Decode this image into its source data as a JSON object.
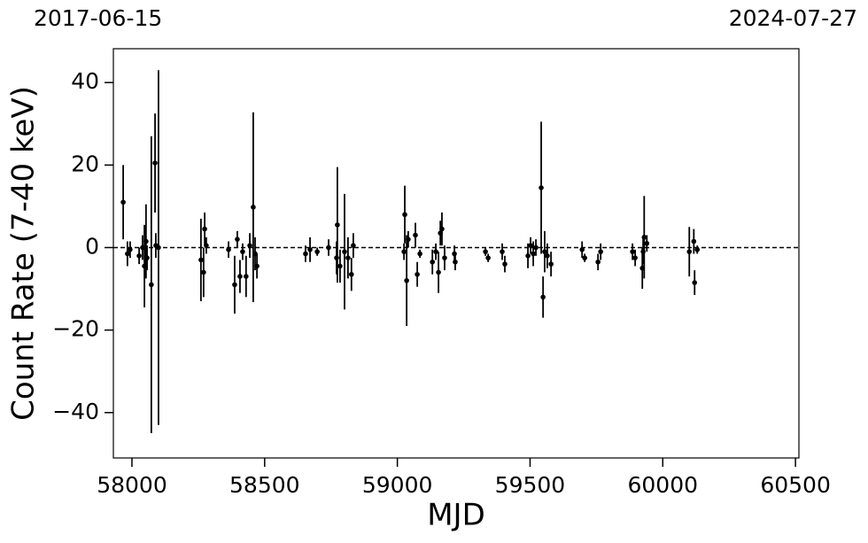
{
  "chart_data": {
    "type": "scatter",
    "annotations": [
      "2017-06-15",
      "2024-07-27"
    ],
    "x_label": "MJD",
    "y_label": "Count Rate (7-40 keV)",
    "xlim": [
      57930,
      60513
    ],
    "ylim": [
      -51,
      48.2
    ],
    "xticks": [
      58000,
      58500,
      59000,
      59500,
      60000,
      60500
    ],
    "yticks": [
      {
        "value": -40,
        "label": "−40"
      },
      {
        "value": -20,
        "label": "−20"
      },
      0,
      20,
      40
    ],
    "reference_line": 0,
    "color": "#000000",
    "x": [
      57967,
      57983,
      57993,
      58027,
      58040,
      58047,
      58053,
      58057,
      58073,
      58087,
      58100,
      58090,
      58260,
      58274,
      58270,
      58280,
      58364,
      58387,
      58397,
      58407,
      58417,
      58430,
      58444,
      58457,
      58464,
      58471,
      58654,
      58671,
      58698,
      58741,
      58771,
      58774,
      58784,
      58801,
      58814,
      58827,
      58834,
      59028,
      59035,
      59041,
      59025,
      59068,
      59075,
      59085,
      59132,
      59145,
      59155,
      59162,
      59168,
      59178,
      59215,
      59218,
      59332,
      59342,
      59395,
      59405,
      59492,
      59502,
      59512,
      59522,
      59542,
      59549,
      59555,
      59565,
      59579,
      59696,
      59706,
      59756,
      59766,
      59886,
      59896,
      59923,
      59926,
      59930,
      59940,
      60100,
      60117,
      60120,
      60130
    ],
    "values": [
      11,
      -1.5,
      -0.5,
      -2,
      0,
      -4.5,
      1.5,
      -2.5,
      -9,
      20.5,
      0,
      0.5,
      -3,
      4.5,
      -6,
      0.5,
      -0.5,
      -9,
      2,
      -7,
      -1,
      -7,
      0.5,
      9.8,
      -1.5,
      -4.5,
      -1.5,
      -0.5,
      -1,
      0,
      -2.5,
      5.5,
      -4.5,
      -1,
      -2.5,
      -6.5,
      0.5,
      8,
      -8,
      2,
      -1,
      3,
      -6.5,
      -1.5,
      -3.5,
      -1,
      -6,
      3.5,
      4.5,
      -2.5,
      -1.5,
      -3.5,
      -1,
      -2.5,
      -1,
      -4,
      -2,
      0.5,
      -1.5,
      0,
      14.5,
      -12,
      -1,
      -2,
      -4,
      -0.5,
      -2.5,
      -3.5,
      -1,
      -1,
      -2.5,
      -5,
      -1,
      2.5,
      1,
      -1,
      1.5,
      -8.5,
      -0.5
    ],
    "errors": [
      9,
      3,
      2,
      2,
      3,
      10,
      9,
      3,
      36,
      12,
      43,
      3,
      10,
      4,
      6,
      2,
      2,
      7,
      2,
      4,
      2,
      5,
      3,
      23,
      4,
      3,
      2,
      3,
      1,
      2,
      4,
      14,
      4,
      14,
      5,
      4,
      3,
      7,
      11,
      2,
      2,
      3,
      3,
      1,
      3,
      2,
      5,
      3,
      4,
      3,
      2,
      2,
      1,
      1,
      2,
      2,
      3,
      2,
      3,
      2,
      16,
      5,
      5,
      3,
      3,
      2,
      1,
      2,
      2,
      2,
      2,
      5,
      3,
      10,
      2,
      6,
      3,
      3,
      1
    ]
  }
}
